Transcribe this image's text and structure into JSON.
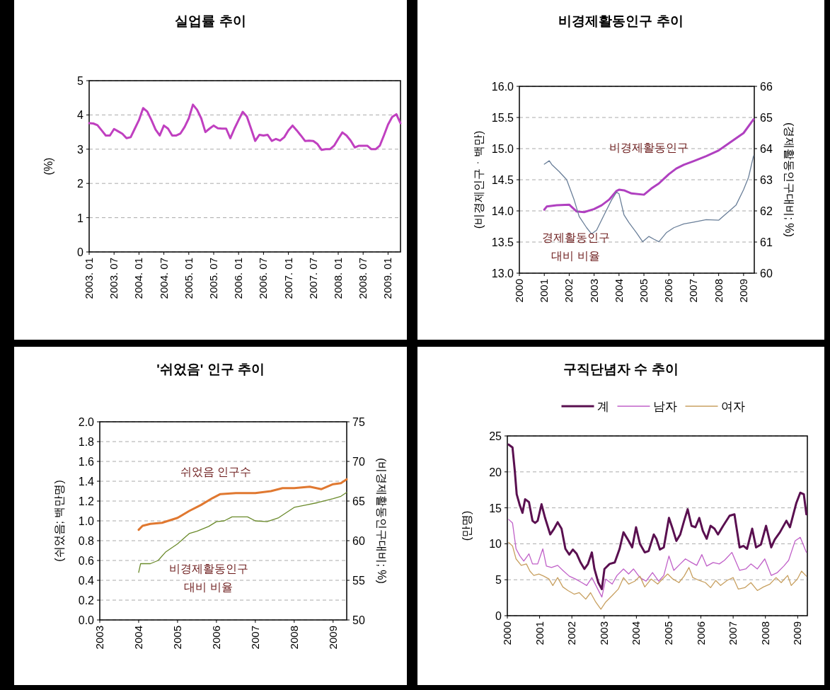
{
  "chart_data": [
    {
      "type": "line",
      "title": "실업률 추이",
      "ylabel": "(%)",
      "grid": "y",
      "legend": false,
      "xlim": [
        "2003-01",
        "2009-04"
      ],
      "xticks": [
        {
          "value": "2003-01",
          "label": "2003. 01"
        },
        {
          "value": "2003-07",
          "label": "2003. 07"
        },
        {
          "value": "2004-01",
          "label": "2004. 01"
        },
        {
          "value": "2004-07",
          "label": "2004. 07"
        },
        {
          "value": "2005-01",
          "label": "2005. 01"
        },
        {
          "value": "2005-07",
          "label": "2005. 07"
        },
        {
          "value": "2006-01",
          "label": "2006. 01"
        },
        {
          "value": "2006-07",
          "label": "2006. 07"
        },
        {
          "value": "2007-01",
          "label": "2007. 01"
        },
        {
          "value": "2007-07",
          "label": "2007. 07"
        },
        {
          "value": "2008-01",
          "label": "2008. 01"
        },
        {
          "value": "2008-07",
          "label": "2008. 07"
        },
        {
          "value": "2009-01",
          "label": "2009. 01"
        }
      ],
      "ylim": [
        0,
        5
      ],
      "yticks": [
        0,
        1,
        2,
        3,
        4,
        5
      ],
      "series": [
        {
          "color": "#c040c0",
          "x": [
            "2003-01",
            "2003-02",
            "2003-03",
            "2003-04",
            "2003-05",
            "2003-06",
            "2003-07",
            "2003-08",
            "2003-09",
            "2003-10",
            "2003-11",
            "2003-12",
            "2004-01",
            "2004-02",
            "2004-03",
            "2004-04",
            "2004-05",
            "2004-06",
            "2004-07",
            "2004-08",
            "2004-09",
            "2004-10",
            "2004-11",
            "2004-12",
            "2005-01",
            "2005-02",
            "2005-03",
            "2005-04",
            "2005-05",
            "2005-06",
            "2005-07",
            "2005-08",
            "2005-09",
            "2005-10",
            "2005-11",
            "2005-12",
            "2006-01",
            "2006-02",
            "2006-03",
            "2006-04",
            "2006-05",
            "2006-06",
            "2006-07",
            "2006-08",
            "2006-09",
            "2006-10",
            "2006-11",
            "2006-12",
            "2007-01",
            "2007-02",
            "2007-03",
            "2007-04",
            "2007-05",
            "2007-06",
            "2007-07",
            "2007-08",
            "2007-09",
            "2007-10",
            "2007-11",
            "2007-12",
            "2008-01",
            "2008-02",
            "2008-03",
            "2008-04",
            "2008-05",
            "2008-06",
            "2008-07",
            "2008-08",
            "2008-09",
            "2008-10",
            "2008-11",
            "2008-12",
            "2009-01",
            "2009-02",
            "2009-03",
            "2009-04"
          ],
          "values": [
            3.76,
            3.75,
            3.7,
            3.55,
            3.4,
            3.4,
            3.59,
            3.52,
            3.45,
            3.32,
            3.35,
            3.6,
            3.85,
            4.2,
            4.1,
            3.85,
            3.57,
            3.4,
            3.69,
            3.6,
            3.4,
            3.4,
            3.46,
            3.65,
            3.9,
            4.3,
            4.15,
            3.9,
            3.5,
            3.6,
            3.69,
            3.61,
            3.6,
            3.6,
            3.32,
            3.6,
            3.85,
            4.09,
            3.95,
            3.6,
            3.24,
            3.42,
            3.4,
            3.42,
            3.24,
            3.3,
            3.25,
            3.35,
            3.55,
            3.69,
            3.55,
            3.4,
            3.24,
            3.25,
            3.24,
            3.15,
            2.98,
            3.0,
            3.0,
            3.1,
            3.3,
            3.49,
            3.4,
            3.25,
            3.05,
            3.1,
            3.1,
            3.1,
            3.0,
            3.0,
            3.1,
            3.4,
            3.72,
            3.94,
            4.02,
            3.76
          ]
        }
      ]
    },
    {
      "type": "line",
      "title": "비경제활동인구 추이",
      "ylabel": "(비경제인구ㆍ백만)",
      "y2label": "(경제활동인구대비; %)",
      "grid": "y",
      "legend": false,
      "xlim": [
        2000,
        2009.43
      ],
      "xticks": [
        2000,
        2001,
        2002,
        2003,
        2004,
        2005,
        2006,
        2007,
        2008,
        2009
      ],
      "ylim": [
        13,
        16
      ],
      "yticks": [
        {
          "value": 13,
          "label": "13.0"
        },
        {
          "value": 13.5,
          "label": "13.5"
        },
        {
          "value": 14,
          "label": "14.0"
        },
        {
          "value": 14.5,
          "label": "14.5"
        },
        {
          "value": 15,
          "label": "15.0"
        },
        {
          "value": 15.5,
          "label": "15.5"
        },
        {
          "value": 16,
          "label": "16.0"
        }
      ],
      "y2lim": [
        60,
        66
      ],
      "y2ticks": [
        60,
        61,
        62,
        63,
        64,
        65,
        66
      ],
      "series": [
        {
          "name": "비경제활동인구",
          "color": "#b040c0",
          "x": [
            2001.0,
            2001.1,
            2001.5,
            2002.0,
            2002.3,
            2002.6,
            2003.0,
            2003.3,
            2003.6,
            2003.9,
            2004.0,
            2004.2,
            2004.5,
            2005.0,
            2005.3,
            2005.6,
            2006.0,
            2006.3,
            2006.6,
            2007.0,
            2007.5,
            2008.0,
            2008.5,
            2009.0,
            2009.4
          ],
          "values": [
            14.02,
            14.07,
            14.09,
            14.1,
            13.99,
            13.98,
            14.03,
            14.09,
            14.18,
            14.32,
            14.34,
            14.33,
            14.28,
            14.26,
            14.36,
            14.44,
            14.59,
            14.68,
            14.74,
            14.8,
            14.88,
            14.97,
            15.11,
            15.25,
            15.47
          ]
        },
        {
          "name": "경제활동인구\n대비 비율",
          "color": "#6a7f99",
          "axis": "y2",
          "x": [
            2001.0,
            2001.2,
            2001.3,
            2001.6,
            2001.9,
            2002.2,
            2002.4,
            2002.7,
            2002.9,
            2003.1,
            2003.4,
            2003.7,
            2003.9,
            2004.0,
            2004.2,
            2004.4,
            2004.7,
            2004.95,
            2005.2,
            2005.4,
            2005.6,
            2005.9,
            2006.2,
            2006.6,
            2007.0,
            2007.5,
            2008.0,
            2008.3,
            2008.7,
            2009.0,
            2009.2,
            2009.4
          ],
          "values": [
            63.5,
            63.61,
            63.49,
            63.26,
            63.0,
            62.35,
            61.82,
            61.46,
            61.26,
            61.38,
            61.87,
            62.35,
            62.6,
            62.55,
            61.87,
            61.62,
            61.3,
            61.01,
            61.18,
            61.09,
            61.01,
            61.3,
            61.46,
            61.58,
            61.64,
            61.72,
            61.7,
            61.91,
            62.19,
            62.68,
            63.08,
            63.77
          ]
        }
      ]
    },
    {
      "type": "line",
      "title": "'쉬었음' 인구 추이",
      "ylabel": "(쉬었음; 백만명)",
      "y2label": "(비경제활동인구대비; %)",
      "grid": "y",
      "legend": false,
      "xlim": [
        2003,
        2009.35
      ],
      "xticks": [
        2003,
        2004,
        2005,
        2006,
        2007,
        2008,
        2009
      ],
      "ylim": [
        0,
        2
      ],
      "yticks": [
        {
          "value": 0,
          "label": "0.0"
        },
        {
          "value": 0.2,
          "label": "0.2"
        },
        {
          "value": 0.4,
          "label": "0.4"
        },
        {
          "value": 0.6,
          "label": "0.6"
        },
        {
          "value": 0.8,
          "label": "0.8"
        },
        {
          "value": 1,
          "label": "1.0"
        },
        {
          "value": 1.2,
          "label": "1.2"
        },
        {
          "value": 1.4,
          "label": "1.4"
        },
        {
          "value": 1.6,
          "label": "1.6"
        },
        {
          "value": 1.8,
          "label": "1.8"
        },
        {
          "value": 2,
          "label": "2.0"
        }
      ],
      "y2lim": [
        50,
        75
      ],
      "y2ticks": [
        50,
        55,
        60,
        65,
        70,
        75
      ],
      "series": [
        {
          "name": "쉬었음 인구수",
          "color": "#e07830",
          "x": [
            2004.0,
            2004.1,
            2004.3,
            2004.6,
            2005.0,
            2005.3,
            2005.6,
            2005.9,
            2006.1,
            2006.5,
            2007.0,
            2007.4,
            2007.7,
            2008.0,
            2008.4,
            2008.7,
            2009.0,
            2009.2,
            2009.35
          ],
          "values": [
            0.91,
            0.95,
            0.97,
            0.98,
            1.03,
            1.1,
            1.16,
            1.23,
            1.27,
            1.28,
            1.28,
            1.3,
            1.33,
            1.33,
            1.345,
            1.32,
            1.37,
            1.38,
            1.42
          ]
        },
        {
          "name": "비경제활동인구\n대비 비율",
          "color": "#6a8a2a",
          "axis": "y2",
          "x": [
            2004.0,
            2004.05,
            2004.3,
            2004.5,
            2004.7,
            2005.0,
            2005.3,
            2005.5,
            2005.8,
            2006.0,
            2006.2,
            2006.4,
            2006.8,
            2007.0,
            2007.3,
            2007.6,
            2008.0,
            2008.3,
            2008.6,
            2009.0,
            2009.2,
            2009.35
          ],
          "values": [
            56.0,
            57.1,
            57.1,
            57.5,
            58.6,
            59.6,
            60.9,
            61.2,
            61.8,
            62.4,
            62.5,
            63.0,
            63.0,
            62.5,
            62.4,
            62.9,
            64.2,
            64.5,
            64.8,
            65.3,
            65.6,
            66.1
          ]
        }
      ]
    },
    {
      "type": "line",
      "title": "구직단념자 수 추이",
      "ylabel": "(만명)",
      "grid": "y",
      "legend": "top",
      "xlim": [
        2000,
        2009.3
      ],
      "xticks": [
        2000,
        2001,
        2002,
        2003,
        2004,
        2005,
        2006,
        2007,
        2008,
        2009
      ],
      "ylim": [
        0,
        25
      ],
      "yticks": [
        0,
        5,
        10,
        15,
        20,
        25
      ],
      "series": [
        {
          "name": "계",
          "color": "#5a1050",
          "x": [
            2000.04,
            2000.16,
            2000.23,
            2000.29,
            2000.39,
            2000.47,
            2000.55,
            2000.67,
            2000.78,
            2000.86,
            2000.94,
            2001.06,
            2001.17,
            2001.33,
            2001.45,
            2001.56,
            2001.68,
            2001.8,
            2001.92,
            2002.03,
            2002.15,
            2002.27,
            2002.39,
            2002.5,
            2002.62,
            2002.7,
            2002.82,
            2002.93,
            2003.01,
            2003.17,
            2003.33,
            2003.48,
            2003.6,
            2003.76,
            2003.87,
            2003.99,
            2004.11,
            2004.26,
            2004.38,
            2004.54,
            2004.62,
            2004.73,
            2004.85,
            2005.01,
            2005.13,
            2005.24,
            2005.36,
            2005.48,
            2005.59,
            2005.71,
            2005.83,
            2005.95,
            2006.06,
            2006.18,
            2006.3,
            2006.42,
            2006.53,
            2006.69,
            2006.89,
            2007.04,
            2007.2,
            2007.32,
            2007.43,
            2007.59,
            2007.71,
            2007.86,
            2008.02,
            2008.18,
            2008.29,
            2008.45,
            2008.65,
            2008.76,
            2008.96,
            2009.08,
            2009.19,
            2009.27
          ],
          "values": [
            23.8,
            23.4,
            20.2,
            16.9,
            15.3,
            14.3,
            16.2,
            15.8,
            13.2,
            12.9,
            13.2,
            15.5,
            13.6,
            11.3,
            12.1,
            13.0,
            12.1,
            9.3,
            8.5,
            9.2,
            8.6,
            7.4,
            6.5,
            7.2,
            8.8,
            6.5,
            4.6,
            3.7,
            6.5,
            7.2,
            7.4,
            9.3,
            11.6,
            10.4,
            9.5,
            12.3,
            10.0,
            8.8,
            9.0,
            11.3,
            10.7,
            9.2,
            9.5,
            13.6,
            12.0,
            10.4,
            11.3,
            13.2,
            14.8,
            12.5,
            12.3,
            13.6,
            11.8,
            10.7,
            12.5,
            12.1,
            11.3,
            12.5,
            13.9,
            14.1,
            9.5,
            9.7,
            9.3,
            12.1,
            9.5,
            9.9,
            12.5,
            9.5,
            10.6,
            11.6,
            13.2,
            12.3,
            15.7,
            17.1,
            16.9,
            14.1
          ]
        },
        {
          "name": "남자",
          "color": "#c060c8",
          "x": [
            2000.04,
            2000.16,
            2000.27,
            2000.39,
            2000.51,
            2000.67,
            2000.78,
            2000.94,
            2001.1,
            2001.21,
            2001.37,
            2001.56,
            2001.72,
            2001.92,
            2002.11,
            2002.31,
            2002.46,
            2002.62,
            2002.78,
            2002.93,
            2003.05,
            2003.25,
            2003.4,
            2003.6,
            2003.76,
            2003.91,
            2004.11,
            2004.3,
            2004.5,
            2004.69,
            2004.85,
            2005.01,
            2005.16,
            2005.36,
            2005.52,
            2005.71,
            2005.87,
            2006.03,
            2006.18,
            2006.38,
            2006.57,
            2006.73,
            2006.96,
            2007.2,
            2007.39,
            2007.55,
            2007.75,
            2007.98,
            2008.18,
            2008.37,
            2008.57,
            2008.72,
            2008.92,
            2009.08,
            2009.27
          ],
          "values": [
            13.4,
            12.9,
            9.3,
            8.3,
            7.6,
            8.6,
            7.2,
            7.2,
            9.3,
            6.9,
            6.7,
            7.0,
            6.3,
            5.5,
            5.1,
            4.6,
            4.2,
            5.3,
            3.9,
            2.6,
            5.1,
            4.4,
            5.6,
            6.5,
            5.8,
            6.5,
            5.3,
            4.8,
            6.0,
            4.8,
            5.6,
            8.3,
            6.3,
            7.2,
            7.9,
            7.4,
            7.0,
            8.5,
            6.9,
            7.4,
            7.2,
            7.7,
            8.8,
            6.3,
            6.5,
            7.2,
            6.5,
            7.9,
            5.6,
            6.0,
            6.9,
            7.7,
            10.4,
            10.9,
            8.8
          ]
        },
        {
          "name": "여자",
          "color": "#c8a060",
          "x": [
            2000.04,
            2000.16,
            2000.27,
            2000.43,
            2000.59,
            2000.7,
            2000.82,
            2000.98,
            2001.13,
            2001.29,
            2001.41,
            2001.56,
            2001.72,
            2001.88,
            2002.07,
            2002.23,
            2002.43,
            2002.58,
            2002.74,
            2002.9,
            2003.05,
            2003.25,
            2003.44,
            2003.6,
            2003.76,
            2003.95,
            2004.11,
            2004.26,
            2004.46,
            2004.66,
            2004.81,
            2004.97,
            2005.13,
            2005.32,
            2005.48,
            2005.63,
            2005.75,
            2005.95,
            2006.14,
            2006.3,
            2006.46,
            2006.61,
            2006.81,
            2007.0,
            2007.16,
            2007.36,
            2007.55,
            2007.75,
            2007.94,
            2008.14,
            2008.33,
            2008.49,
            2008.69,
            2008.8,
            2008.99,
            2009.12,
            2009.27
          ],
          "values": [
            10.2,
            9.7,
            7.9,
            7.0,
            7.2,
            6.2,
            5.6,
            5.8,
            5.5,
            5.1,
            4.2,
            5.3,
            4.0,
            3.5,
            3.0,
            3.2,
            2.3,
            3.2,
            1.9,
            0.9,
            1.9,
            2.8,
            3.7,
            5.3,
            4.4,
            4.8,
            5.5,
            4.0,
            5.1,
            4.4,
            5.1,
            5.8,
            5.1,
            4.6,
            5.5,
            6.7,
            5.3,
            4.9,
            4.6,
            3.9,
            4.9,
            4.2,
            4.9,
            5.3,
            3.7,
            3.9,
            4.6,
            3.5,
            4.0,
            4.4,
            5.3,
            4.6,
            5.6,
            4.2,
            5.1,
            6.2,
            5.5
          ]
        }
      ]
    }
  ]
}
